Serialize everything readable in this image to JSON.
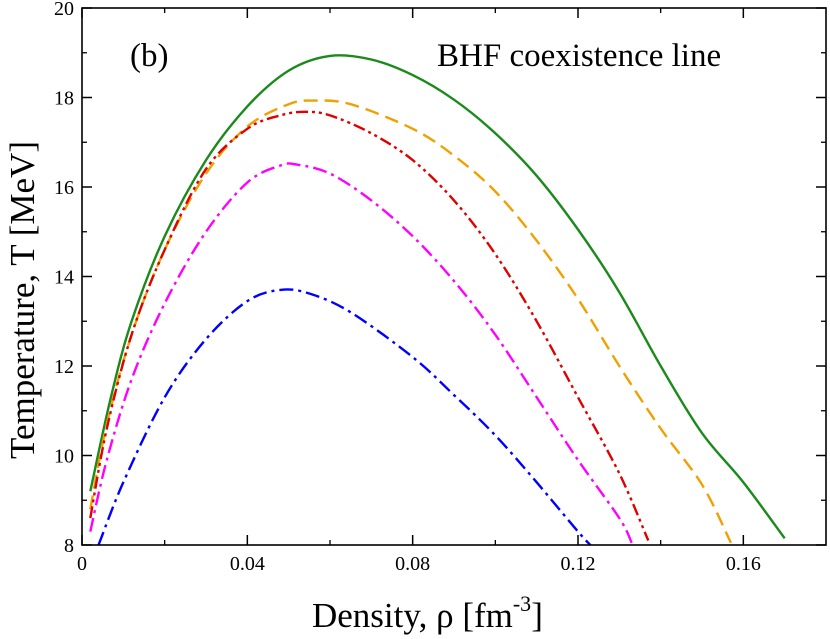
{
  "chart_data": {
    "type": "line",
    "title": "BHF coexistence line",
    "panel_label": "(b)",
    "xlabel": "Density, ρ [fm",
    "xlabel_sup": "-3",
    "xlabel_close": "]",
    "ylabel": "Temperature, T [MeV]",
    "xlim": [
      0,
      0.18
    ],
    "ylim": [
      8,
      20
    ],
    "x_ticks": [
      0,
      0.04,
      0.08,
      0.12,
      0.16
    ],
    "x_tick_labels": [
      "0",
      "0.04",
      "0.08",
      "0.12",
      "0.16"
    ],
    "y_ticks": [
      8,
      10,
      12,
      14,
      16,
      18,
      20
    ],
    "y_tick_labels": [
      "8",
      "10",
      "12",
      "14",
      "16",
      "18",
      "20"
    ],
    "grid": false,
    "series": [
      {
        "name": "solid-green",
        "color": "#1a8a1a",
        "dash": "solid",
        "points": [
          [
            0.002,
            9.2
          ],
          [
            0.007,
            11.3
          ],
          [
            0.012,
            13.0
          ],
          [
            0.02,
            14.9
          ],
          [
            0.03,
            16.6
          ],
          [
            0.04,
            17.8
          ],
          [
            0.05,
            18.6
          ],
          [
            0.06,
            18.93
          ],
          [
            0.07,
            18.85
          ],
          [
            0.08,
            18.5
          ],
          [
            0.09,
            17.95
          ],
          [
            0.1,
            17.2
          ],
          [
            0.11,
            16.25
          ],
          [
            0.12,
            15.05
          ],
          [
            0.13,
            13.65
          ],
          [
            0.14,
            12.0
          ],
          [
            0.15,
            10.5
          ],
          [
            0.16,
            9.4
          ],
          [
            0.17,
            8.15
          ]
        ]
      },
      {
        "name": "dashed-orange",
        "color": "#f0a000",
        "dash": "dashed",
        "points": [
          [
            0.002,
            8.8
          ],
          [
            0.006,
            10.7
          ],
          [
            0.012,
            12.7
          ],
          [
            0.02,
            14.6
          ],
          [
            0.03,
            16.3
          ],
          [
            0.04,
            17.35
          ],
          [
            0.05,
            17.85
          ],
          [
            0.056,
            17.93
          ],
          [
            0.065,
            17.85
          ],
          [
            0.08,
            17.3
          ],
          [
            0.09,
            16.7
          ],
          [
            0.1,
            15.9
          ],
          [
            0.11,
            14.8
          ],
          [
            0.12,
            13.5
          ],
          [
            0.13,
            12.0
          ],
          [
            0.14,
            10.6
          ],
          [
            0.15,
            9.35
          ],
          [
            0.157,
            8.05
          ]
        ]
      },
      {
        "name": "dash-dot-dot-red",
        "color": "#e00000",
        "dash": "dashdotdot",
        "points": [
          [
            0.002,
            8.6
          ],
          [
            0.006,
            10.6
          ],
          [
            0.012,
            12.7
          ],
          [
            0.02,
            14.6
          ],
          [
            0.03,
            16.4
          ],
          [
            0.04,
            17.3
          ],
          [
            0.048,
            17.6
          ],
          [
            0.054,
            17.68
          ],
          [
            0.06,
            17.6
          ],
          [
            0.07,
            17.2
          ],
          [
            0.08,
            16.6
          ],
          [
            0.09,
            15.7
          ],
          [
            0.1,
            14.5
          ],
          [
            0.11,
            13.0
          ],
          [
            0.12,
            11.3
          ],
          [
            0.13,
            9.6
          ],
          [
            0.137,
            8.1
          ]
        ]
      },
      {
        "name": "dash-dot-magenta",
        "color": "#ff00ff",
        "dash": "dashdot",
        "points": [
          [
            0.002,
            8.3
          ],
          [
            0.006,
            9.9
          ],
          [
            0.012,
            11.7
          ],
          [
            0.02,
            13.4
          ],
          [
            0.03,
            15.0
          ],
          [
            0.04,
            16.1
          ],
          [
            0.048,
            16.48
          ],
          [
            0.052,
            16.5
          ],
          [
            0.06,
            16.3
          ],
          [
            0.07,
            15.7
          ],
          [
            0.08,
            14.9
          ],
          [
            0.09,
            13.9
          ],
          [
            0.1,
            12.7
          ],
          [
            0.11,
            11.3
          ],
          [
            0.12,
            9.9
          ],
          [
            0.13,
            8.6
          ],
          [
            0.133,
            8.05
          ]
        ]
      },
      {
        "name": "dash-dot-blue",
        "color": "#0000ff",
        "dash": "dashdot",
        "points": [
          [
            0.004,
            8.0
          ],
          [
            0.01,
            9.4
          ],
          [
            0.02,
            11.3
          ],
          [
            0.03,
            12.6
          ],
          [
            0.04,
            13.45
          ],
          [
            0.048,
            13.7
          ],
          [
            0.055,
            13.62
          ],
          [
            0.065,
            13.2
          ],
          [
            0.08,
            12.2
          ],
          [
            0.09,
            11.35
          ],
          [
            0.1,
            10.45
          ],
          [
            0.11,
            9.4
          ],
          [
            0.12,
            8.3
          ],
          [
            0.123,
            8.0
          ]
        ]
      }
    ]
  }
}
